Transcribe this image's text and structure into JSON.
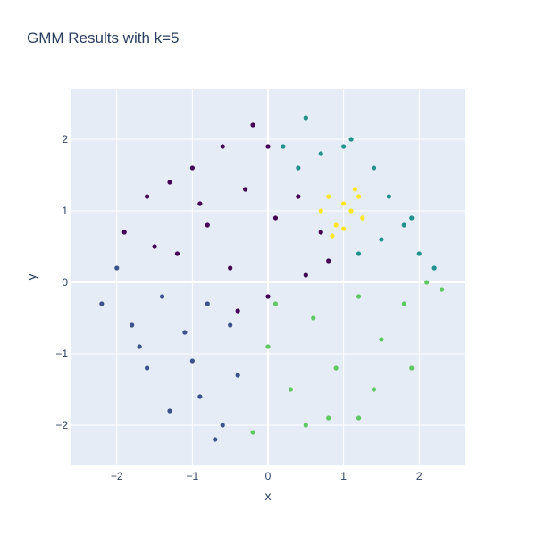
{
  "chart_data": {
    "type": "scatter",
    "title": "GMM Results with k=5",
    "xlabel": "x",
    "ylabel": "y",
    "xlim": [
      -2.6,
      2.6
    ],
    "ylim": [
      -2.55,
      2.7
    ],
    "xticks": [
      -2,
      -1,
      0,
      1,
      2
    ],
    "xtick_labels": [
      "−2",
      "−1",
      "0",
      "1",
      "2"
    ],
    "yticks": [
      -2,
      -1,
      0,
      1,
      2
    ],
    "ytick_labels": [
      "−2",
      "−1",
      "0",
      "1",
      "2"
    ],
    "grid": true,
    "legend": "none",
    "colors": {
      "plot_background": "#e5ecf6",
      "grid": "#ffffff",
      "text": "#2a3f5f"
    },
    "series": [
      {
        "cluster": 0,
        "color": "#440154",
        "region": "upper-left",
        "points": [
          [
            -1.9,
            0.7
          ],
          [
            -1.6,
            1.2
          ],
          [
            -1.3,
            1.4
          ],
          [
            -1.0,
            1.6
          ],
          [
            -0.6,
            1.9
          ],
          [
            -0.2,
            2.2
          ],
          [
            0.0,
            1.9
          ],
          [
            -0.3,
            1.3
          ],
          [
            -0.8,
            0.8
          ],
          [
            -1.2,
            0.4
          ],
          [
            -0.5,
            0.2
          ],
          [
            0.1,
            0.9
          ],
          [
            0.4,
            1.2
          ],
          [
            0.7,
            0.7
          ],
          [
            0.5,
            0.1
          ],
          [
            0.0,
            -0.2
          ],
          [
            -0.4,
            -0.4
          ],
          [
            -1.5,
            0.5
          ],
          [
            -0.9,
            1.1
          ],
          [
            0.8,
            0.3
          ]
        ]
      },
      {
        "cluster": 1,
        "color": "#3b528b",
        "region": "lower-left",
        "points": [
          [
            -2.2,
            -0.3
          ],
          [
            -2.0,
            0.2
          ],
          [
            -1.8,
            -0.6
          ],
          [
            -1.6,
            -1.2
          ],
          [
            -1.4,
            -0.2
          ],
          [
            -1.1,
            -0.7
          ],
          [
            -0.9,
            -1.6
          ],
          [
            -0.6,
            -2.0
          ],
          [
            -0.4,
            -1.3
          ],
          [
            -0.5,
            -0.6
          ],
          [
            -1.3,
            -1.8
          ],
          [
            -1.7,
            -0.9
          ],
          [
            -0.8,
            -0.3
          ],
          [
            -1.0,
            -1.1
          ],
          [
            -0.7,
            -2.2
          ]
        ]
      },
      {
        "cluster": 2,
        "color": "#21918c",
        "region": "upper-right",
        "points": [
          [
            0.2,
            1.9
          ],
          [
            0.5,
            2.3
          ],
          [
            0.7,
            1.8
          ],
          [
            1.1,
            2.0
          ],
          [
            1.4,
            1.6
          ],
          [
            1.6,
            1.2
          ],
          [
            1.8,
            0.8
          ],
          [
            2.0,
            0.4
          ],
          [
            2.2,
            0.2
          ],
          [
            1.5,
            0.6
          ],
          [
            1.2,
            0.4
          ],
          [
            0.4,
            1.6
          ],
          [
            1.9,
            0.9
          ],
          [
            1.0,
            1.9
          ]
        ]
      },
      {
        "cluster": 3,
        "color": "#5ec962",
        "region": "lower-right",
        "points": [
          [
            0.0,
            -0.9
          ],
          [
            0.3,
            -1.5
          ],
          [
            0.6,
            -0.5
          ],
          [
            0.9,
            -1.2
          ],
          [
            1.2,
            -1.9
          ],
          [
            1.5,
            -0.8
          ],
          [
            1.8,
            -0.3
          ],
          [
            2.1,
            0.0
          ],
          [
            1.9,
            -1.2
          ],
          [
            1.2,
            -0.2
          ],
          [
            0.5,
            -2.0
          ],
          [
            0.8,
            -1.9
          ],
          [
            -0.2,
            -2.1
          ],
          [
            1.4,
            -1.5
          ],
          [
            2.3,
            -0.1
          ],
          [
            0.1,
            -0.3
          ]
        ]
      },
      {
        "cluster": 4,
        "color": "#fde725",
        "region": "center (about x=1, y=1)",
        "points": [
          [
            0.7,
            1.0
          ],
          [
            0.8,
            1.2
          ],
          [
            0.9,
            0.8
          ],
          [
            1.0,
            1.1
          ],
          [
            1.1,
            1.0
          ],
          [
            1.2,
            1.2
          ],
          [
            0.85,
            0.65
          ],
          [
            1.25,
            0.9
          ],
          [
            1.0,
            0.75
          ],
          [
            1.15,
            1.3
          ]
        ]
      }
    ]
  }
}
